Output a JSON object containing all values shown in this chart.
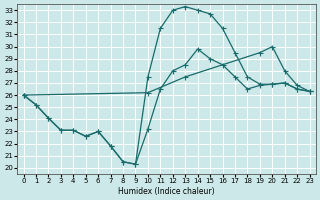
{
  "xlabel": "Humidex (Indice chaleur)",
  "xlim": [
    -0.5,
    23.5
  ],
  "ylim": [
    19.5,
    33.5
  ],
  "xticks": [
    0,
    1,
    2,
    3,
    4,
    5,
    6,
    7,
    8,
    9,
    10,
    11,
    12,
    13,
    14,
    15,
    16,
    17,
    18,
    19,
    20,
    21,
    22,
    23
  ],
  "yticks": [
    20,
    21,
    22,
    23,
    24,
    25,
    26,
    27,
    28,
    29,
    30,
    31,
    32,
    33
  ],
  "bg_color": "#cce8e8",
  "grid_color": "#ffffff",
  "line_color": "#1a6b6b",
  "curve1_x": [
    0,
    1,
    2,
    3,
    4,
    5,
    6,
    7,
    8,
    9,
    10,
    11,
    12,
    13,
    14,
    15,
    16,
    17,
    18,
    19,
    20,
    21,
    22,
    23
  ],
  "curve1_y": [
    26.0,
    25.2,
    24.1,
    23.1,
    23.1,
    22.6,
    23.0,
    21.8,
    20.5,
    20.3,
    27.5,
    31.5,
    33.0,
    33.3,
    33.0,
    32.7,
    31.5,
    29.5,
    27.5,
    26.9,
    26.9,
    27.0,
    26.5,
    26.3
  ],
  "curve2_x": [
    0,
    1,
    2,
    3,
    4,
    5,
    6,
    7,
    8,
    9,
    10,
    11,
    12,
    13,
    14,
    15,
    16,
    17,
    18,
    19,
    20,
    21,
    22,
    23
  ],
  "curve2_y": [
    26.0,
    25.2,
    24.1,
    23.1,
    23.1,
    22.6,
    23.0,
    21.8,
    20.5,
    20.3,
    23.2,
    26.5,
    28.0,
    28.5,
    29.8,
    29.0,
    28.5,
    27.5,
    26.5,
    26.8,
    26.9,
    27.0,
    26.5,
    26.3
  ],
  "curve3_x": [
    0,
    10,
    13,
    19,
    20,
    21,
    22,
    23
  ],
  "curve3_y": [
    26.0,
    26.2,
    27.5,
    29.5,
    30.0,
    28.0,
    26.8,
    26.3
  ]
}
